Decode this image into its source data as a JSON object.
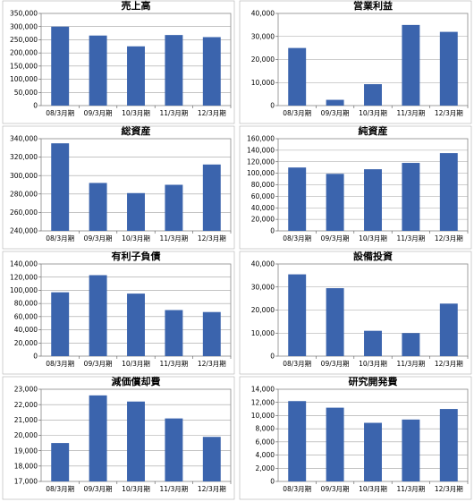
{
  "chart_data": [
    {
      "type": "bar",
      "title": "売上高",
      "categories": [
        "08/3月期",
        "09/3月期",
        "10/3月期",
        "11/3月期",
        "12/3月期"
      ],
      "values": [
        300000,
        266000,
        225000,
        268000,
        260000
      ],
      "ylim": [
        0,
        350000
      ],
      "yticks": [
        "0",
        "50,000",
        "100,000",
        "150,000",
        "200,000",
        "250,000",
        "300,000",
        "350,000"
      ],
      "grid": true,
      "color": "#3b64ad"
    },
    {
      "type": "bar",
      "title": "営業利益",
      "categories": [
        "08/3月期",
        "09/3月期",
        "10/3月期",
        "11/3月期",
        "12/3月期"
      ],
      "values": [
        25000,
        2500,
        9300,
        35000,
        32000
      ],
      "ylim": [
        0,
        40000
      ],
      "yticks": [
        "0",
        "10,000",
        "20,000",
        "30,000",
        "40,000"
      ],
      "grid": true,
      "color": "#3b64ad"
    },
    {
      "type": "bar",
      "title": "総資産",
      "categories": [
        "08/3月期",
        "09/3月期",
        "10/3月期",
        "11/3月期",
        "12/3月期"
      ],
      "values": [
        335000,
        292000,
        281000,
        290000,
        312000
      ],
      "ylim": [
        240000,
        340000
      ],
      "yticks": [
        "240,000",
        "260,000",
        "280,000",
        "300,000",
        "320,000",
        "340,000"
      ],
      "grid": true,
      "color": "#3b64ad"
    },
    {
      "type": "bar",
      "title": "純資産",
      "categories": [
        "08/3月期",
        "09/3月期",
        "10/3月期",
        "11/3月期",
        "12/3月期"
      ],
      "values": [
        110000,
        99000,
        107000,
        118000,
        135000
      ],
      "ylim": [
        0,
        160000
      ],
      "yticks": [
        "0",
        "20,000",
        "40,000",
        "60,000",
        "80,000",
        "100,000",
        "120,000",
        "140,000",
        "160,000"
      ],
      "grid": true,
      "color": "#3b64ad"
    },
    {
      "type": "bar",
      "title": "有利子負債",
      "categories": [
        "08/3月期",
        "09/3月期",
        "10/3月期",
        "11/3月期",
        "12/3月期"
      ],
      "values": [
        97000,
        123000,
        95000,
        70000,
        67000
      ],
      "ylim": [
        0,
        140000
      ],
      "yticks": [
        "0",
        "20,000",
        "40,000",
        "60,000",
        "80,000",
        "100,000",
        "120,000",
        "140,000"
      ],
      "grid": true,
      "color": "#3b64ad"
    },
    {
      "type": "bar",
      "title": "設備投資",
      "categories": [
        "08/3月期",
        "09/3月期",
        "10/3月期",
        "11/3月期",
        "12/3月期"
      ],
      "values": [
        35500,
        29500,
        11000,
        10000,
        22800
      ],
      "ylim": [
        0,
        40000
      ],
      "yticks": [
        "0",
        "10,000",
        "20,000",
        "30,000",
        "40,000"
      ],
      "grid": true,
      "color": "#3b64ad"
    },
    {
      "type": "bar",
      "title": "減価償却費",
      "categories": [
        "08/3月期",
        "09/3月期",
        "10/3月期",
        "11/3月期",
        "12/3月期"
      ],
      "values": [
        19500,
        22600,
        22200,
        21100,
        19900
      ],
      "ylim": [
        17000,
        23000
      ],
      "yticks": [
        "17,000",
        "18,000",
        "19,000",
        "20,000",
        "21,000",
        "22,000",
        "23,000"
      ],
      "grid": true,
      "color": "#3b64ad"
    },
    {
      "type": "bar",
      "title": "研究開発費",
      "categories": [
        "08/3月期",
        "09/3月期",
        "10/3月期",
        "11/3月期",
        "12/3月期"
      ],
      "values": [
        12200,
        11200,
        8900,
        9400,
        11000
      ],
      "ylim": [
        0,
        14000
      ],
      "yticks": [
        "0",
        "2,000",
        "4,000",
        "6,000",
        "8,000",
        "10,000",
        "12,000",
        "14,000"
      ],
      "grid": true,
      "color": "#3b64ad"
    }
  ]
}
